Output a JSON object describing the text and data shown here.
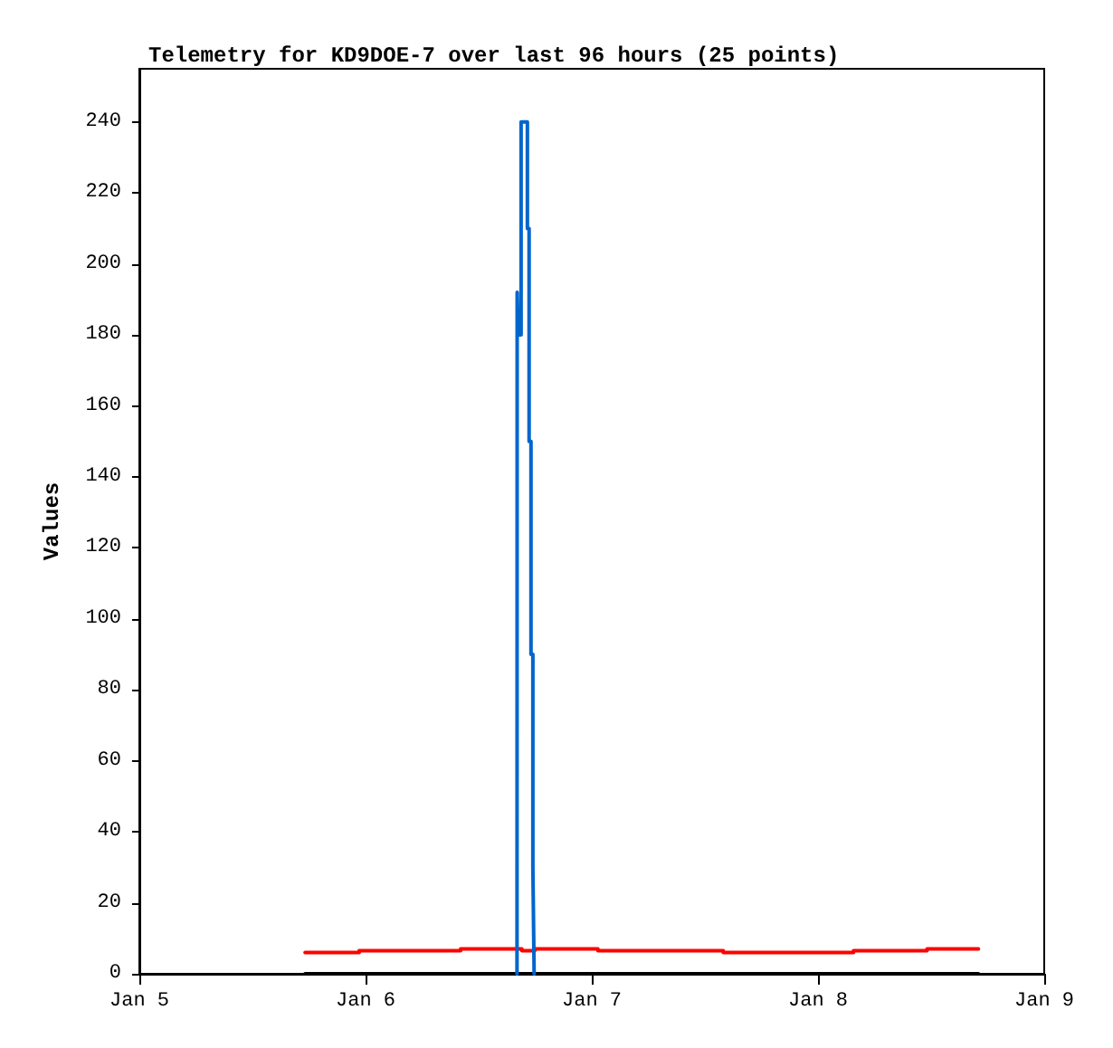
{
  "chart_data": {
    "type": "step",
    "title": "Telemetry for KD9DOE-7 over last 96 hours (25 points)",
    "ylabel": "Values",
    "xlim": [
      "--01-05T00:00",
      "--01-09T00:00"
    ],
    "xticks": [
      {
        "value": "--01-05T00:00",
        "label": "Jan 5"
      },
      {
        "value": "--01-06T00:00",
        "label": "Jan 6"
      },
      {
        "value": "--01-07T00:00",
        "label": "Jan 7"
      },
      {
        "value": "--01-08T00:00",
        "label": "Jan 8"
      },
      {
        "value": "--01-09T00:00",
        "label": "Jan 9"
      }
    ],
    "ylim": [
      0,
      255
    ],
    "yticks": [
      0,
      20,
      40,
      60,
      80,
      100,
      120,
      140,
      160,
      180,
      200,
      220,
      240
    ],
    "grid": false,
    "marker": "none",
    "line_style": "solid",
    "series": [
      {
        "color": "#000000",
        "x": [
          "--01-05T17:35",
          "--01-08T17:01"
        ],
        "values": [
          0,
          0
        ]
      },
      {
        "color": "#ff0000",
        "x": [
          "--01-05T17:35",
          "--01-05T23:19",
          "--01-06T10:05",
          "--01-06T16:35",
          "--01-06T17:57",
          "--01-07T00:39",
          "--01-07T13:57",
          "--01-08T03:46",
          "--01-08T11:34",
          "--01-08T17:01"
        ],
        "values": [
          6,
          6.5,
          7,
          6.5,
          7,
          6.5,
          6,
          6.5,
          7,
          7
        ]
      },
      {
        "color": "#0066cc",
        "x": [
          "--01-06T16:04",
          "--01-06T16:05",
          "--01-06T16:10",
          "--01-06T16:30",
          "--01-06T17:10",
          "--01-06T17:21",
          "--01-06T17:33",
          "--01-06T17:45",
          "--01-06T17:53"
        ],
        "values": [
          0,
          192,
          180,
          240,
          210,
          150,
          90,
          30,
          0
        ]
      }
    ]
  }
}
